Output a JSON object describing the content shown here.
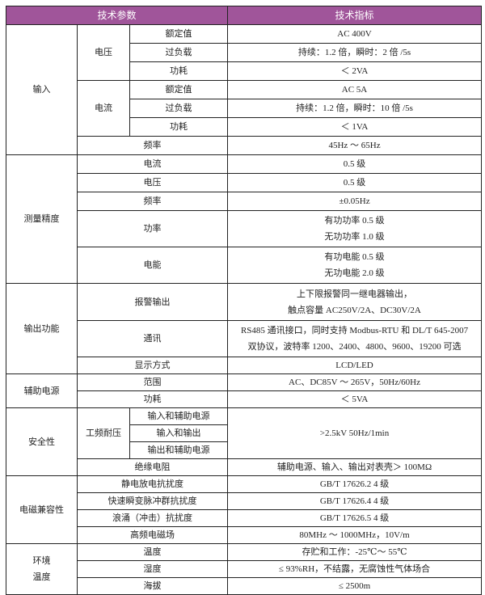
{
  "header": {
    "param": "技术参数",
    "spec": "技术指标"
  },
  "input": {
    "label": "输入",
    "voltage": {
      "label": "电压",
      "rated": [
        "额定值",
        "AC 400V"
      ],
      "overload": [
        "过负载",
        "持续：1.2 倍，瞬时：2 倍 /5s"
      ],
      "power": [
        "功耗",
        "＜ 2VA"
      ]
    },
    "current": {
      "label": "电流",
      "rated": [
        "额定值",
        "AC 5A"
      ],
      "overload": [
        "过负载",
        "持续：1.2 倍，瞬时：10 倍 /5s"
      ],
      "power": [
        "功耗",
        "＜ 1VA"
      ]
    },
    "freq": [
      "频率",
      "45Hz ～ 65Hz"
    ]
  },
  "accuracy": {
    "label": "测量精度",
    "current": [
      "电流",
      "0.5 级"
    ],
    "voltage": [
      "电压",
      "0.5 级"
    ],
    "freq": [
      "频率",
      "±0.05Hz"
    ],
    "power": {
      "label": "功率",
      "lines": [
        "有功功率 0.5 级",
        "无功功率 1.0 级"
      ]
    },
    "energy": {
      "label": "电能",
      "lines": [
        "有功电能 0.5 级",
        "无功电能 2.0 级"
      ]
    }
  },
  "output": {
    "label": "输出功能",
    "alarm": {
      "label": "报警输出",
      "lines": [
        "上下限报警同一继电器输出，",
        "触点容量 AC250V/2A、DC30V/2A"
      ]
    },
    "comm": {
      "label": "通讯",
      "lines": [
        "RS485 通讯接口，同时支持 Modbus-RTU 和 DL/T 645-2007",
        "双协议，波特率 1200、2400、4800、9600、19200 可选"
      ]
    },
    "display": [
      "显示方式",
      "LCD/LED"
    ]
  },
  "aux": {
    "label": "辅助电源",
    "range": [
      "范围",
      "AC、DC85V ～ 265V，50Hz/60Hz"
    ],
    "power": [
      "功耗",
      "＜ 5VA"
    ]
  },
  "safety": {
    "label": "安全性",
    "withstand": {
      "label": "工频耐压",
      "items": [
        "输入和辅助电源",
        "输入和输出",
        "输出和辅助电源"
      ],
      "value": ">2.5kV 50Hz/1min"
    },
    "insulation": [
      "绝缘电阻",
      "辅助电源、输入、输出对表壳＞ 100MΩ"
    ]
  },
  "emc": {
    "label": "电磁兼容性",
    "esd": [
      "静电放电抗扰度",
      "GB/T 17626.2 4 级"
    ],
    "eft": [
      "快速瞬变脉冲群抗扰度",
      "GB/T 17626.4 4 级"
    ],
    "surge": [
      "浪涌（冲击）抗扰度",
      "GB/T 17626.5 4 级"
    ],
    "rf": [
      "高频电磁场",
      "80MHz ～ 1000MHz，10V/m"
    ]
  },
  "env": {
    "label1": "环境",
    "label2": "温度",
    "temp": [
      "温度",
      "存贮和工作：-25℃～ 55℃"
    ],
    "humidity": [
      "湿度",
      "≤ 93%RH，不结露，无腐蚀性气体场合"
    ],
    "altitude": [
      "海拔",
      "≤ 2500m"
    ]
  },
  "colors": {
    "header_bg": "#a0559a",
    "header_text": "#ffffff"
  }
}
